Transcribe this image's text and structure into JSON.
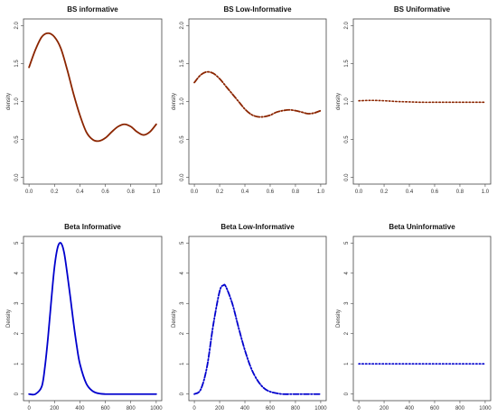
{
  "chart_data": [
    {
      "type": "line",
      "title": "BS informative",
      "ylabel": "density",
      "xlim": [
        0,
        1
      ],
      "ylim": [
        0,
        2
      ],
      "xticks": [
        "0.0",
        "0.2",
        "0.4",
        "0.6",
        "0.8",
        "1.0"
      ],
      "yticks": [
        "0.0",
        "0.5",
        "1.0",
        "1.5",
        "2.0"
      ],
      "line_color": "#8b2500",
      "line_style": "solid",
      "x": [
        0.0,
        0.05,
        0.1,
        0.15,
        0.2,
        0.25,
        0.3,
        0.35,
        0.4,
        0.45,
        0.5,
        0.55,
        0.6,
        0.65,
        0.7,
        0.75,
        0.8,
        0.85,
        0.9,
        0.95,
        1.0
      ],
      "y": [
        1.45,
        1.68,
        1.85,
        1.9,
        1.85,
        1.7,
        1.42,
        1.1,
        0.82,
        0.6,
        0.5,
        0.48,
        0.52,
        0.6,
        0.67,
        0.7,
        0.67,
        0.6,
        0.56,
        0.6,
        0.7
      ]
    },
    {
      "type": "line",
      "title": "BS Low-Informative",
      "ylabel": "density",
      "xlim": [
        0,
        1
      ],
      "ylim": [
        0,
        2
      ],
      "xticks": [
        "0.0",
        "0.2",
        "0.4",
        "0.6",
        "0.8",
        "1.0"
      ],
      "yticks": [
        "0.0",
        "0.5",
        "1.0",
        "1.5",
        "2.0"
      ],
      "line_color": "#8b2500",
      "line_style": "dashdot",
      "x": [
        0.0,
        0.05,
        0.1,
        0.15,
        0.2,
        0.25,
        0.3,
        0.35,
        0.4,
        0.45,
        0.5,
        0.55,
        0.6,
        0.65,
        0.7,
        0.75,
        0.8,
        0.85,
        0.9,
        0.95,
        1.0
      ],
      "y": [
        1.25,
        1.35,
        1.39,
        1.37,
        1.3,
        1.2,
        1.1,
        1.0,
        0.9,
        0.83,
        0.8,
        0.8,
        0.82,
        0.86,
        0.88,
        0.89,
        0.88,
        0.86,
        0.84,
        0.85,
        0.88
      ]
    },
    {
      "type": "line",
      "title": "BS Uniformative",
      "ylabel": "density",
      "xlim": [
        0,
        1
      ],
      "ylim": [
        0,
        2
      ],
      "xticks": [
        "0.0",
        "0.2",
        "0.4",
        "0.6",
        "0.8",
        "1.0"
      ],
      "yticks": [
        "0.0",
        "0.5",
        "1.0",
        "1.5",
        "2.0"
      ],
      "line_color": "#8b2500",
      "line_style": "dotted",
      "x": [
        0.0,
        0.1,
        0.2,
        0.3,
        0.4,
        0.5,
        0.6,
        0.7,
        0.8,
        0.9,
        1.0
      ],
      "y": [
        1.01,
        1.015,
        1.01,
        1.0,
        0.995,
        0.99,
        0.99,
        0.99,
        0.99,
        0.99,
        0.99
      ]
    },
    {
      "type": "line",
      "title": "Beta Informative",
      "ylabel": "Density",
      "xlim": [
        0,
        1000
      ],
      "ylim": [
        0,
        5
      ],
      "xticks": [
        "0",
        "200",
        "400",
        "600",
        "800",
        "1000"
      ],
      "yticks": [
        "0",
        "1",
        "2",
        "3",
        "4",
        "5"
      ],
      "line_color": "#0000cd",
      "line_style": "solid",
      "x": [
        0,
        50,
        100,
        125,
        150,
        175,
        200,
        225,
        250,
        275,
        300,
        325,
        350,
        375,
        400,
        450,
        500,
        550,
        600,
        700,
        800,
        900,
        1000
      ],
      "y": [
        0.0,
        0.0,
        0.25,
        0.9,
        1.9,
        3.1,
        4.2,
        4.85,
        5.0,
        4.7,
        4.0,
        3.2,
        2.35,
        1.6,
        1.0,
        0.35,
        0.1,
        0.02,
        0.0,
        0.0,
        0.0,
        0.0,
        0.0
      ]
    },
    {
      "type": "line",
      "title": "Beta Low-Informative",
      "ylabel": "Density",
      "xlim": [
        0,
        1000
      ],
      "ylim": [
        0,
        5
      ],
      "xticks": [
        "0",
        "200",
        "400",
        "600",
        "800",
        "1000"
      ],
      "yticks": [
        "0",
        "1",
        "2",
        "3",
        "4",
        "5"
      ],
      "line_color": "#0000cd",
      "line_style": "dashdot",
      "x": [
        0,
        50,
        100,
        150,
        200,
        230,
        250,
        300,
        350,
        400,
        450,
        500,
        550,
        600,
        650,
        700,
        800,
        900,
        1000
      ],
      "y": [
        0.0,
        0.15,
        0.9,
        2.3,
        3.4,
        3.6,
        3.55,
        3.0,
        2.2,
        1.45,
        0.85,
        0.45,
        0.2,
        0.08,
        0.03,
        0.0,
        0.0,
        0.0,
        0.0
      ]
    },
    {
      "type": "line",
      "title": "Beta Uninformative",
      "ylabel": "Density",
      "xlim": [
        0,
        1000
      ],
      "ylim": [
        0,
        5
      ],
      "xticks": [
        "0",
        "200",
        "400",
        "600",
        "800",
        "1000"
      ],
      "yticks": [
        "0",
        "1",
        "2",
        "3",
        "4",
        "5"
      ],
      "line_color": "#0000cd",
      "line_style": "dotted",
      "x": [
        0,
        100,
        200,
        300,
        400,
        500,
        600,
        700,
        800,
        900,
        1000
      ],
      "y": [
        1.0,
        1.0,
        1.0,
        1.0,
        1.0,
        1.0,
        1.0,
        1.0,
        1.0,
        1.0,
        1.0
      ]
    }
  ]
}
